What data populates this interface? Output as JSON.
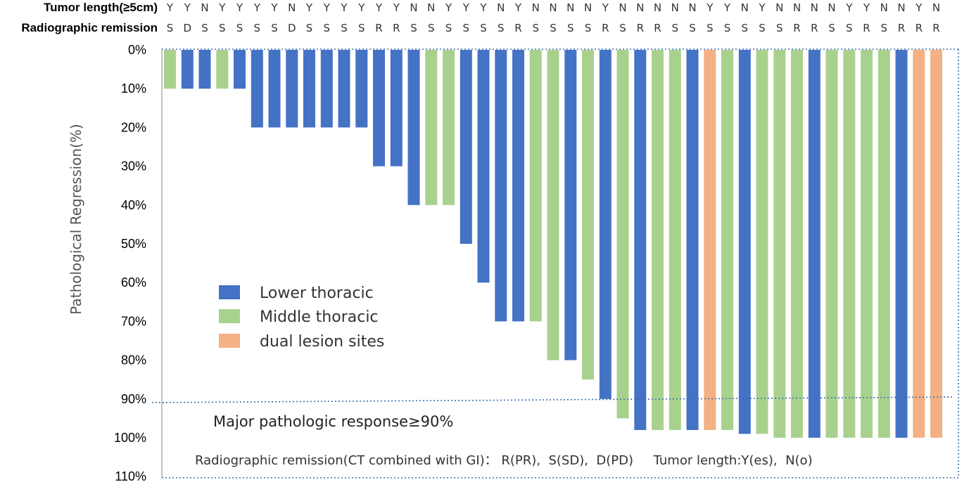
{
  "chart_data": {
    "type": "bar",
    "orientation": "downward",
    "ylabel": "Pathological Regression(%)",
    "ylim": [
      0,
      110
    ],
    "yticks": [
      0,
      10,
      20,
      30,
      40,
      50,
      60,
      70,
      80,
      90,
      100,
      110
    ],
    "ytick_labels": [
      "0%",
      "10%",
      "20%",
      "30%",
      "40%",
      "50%",
      "60%",
      "70%",
      "80%",
      "90%",
      "100%",
      "110%"
    ],
    "threshold": 90,
    "threshold_label": "Major pathologic response≥90%",
    "footnote": "Radiographic remission(CT combined with GI)： R(PR),  S(SD),  D(PD)     Tumor length:Y(es),  N(o)",
    "legend_position": "middle-left",
    "colors": {
      "Lower thoracic": "#4472c4",
      "Middle thoracic": "#a9d18e",
      "dual lesion sites": "#f4b183"
    },
    "legend": [
      "Lower thoracic",
      "Middle thoracic",
      "dual lesion sites"
    ],
    "values": [
      10,
      10,
      10,
      10,
      10,
      20,
      20,
      20,
      20,
      20,
      20,
      20,
      30,
      30,
      40,
      40,
      40,
      50,
      60,
      70,
      70,
      70,
      80,
      80,
      85,
      90,
      95,
      98,
      98,
      98,
      98,
      98,
      98,
      99,
      99,
      100,
      100,
      100,
      100,
      100,
      100,
      100,
      100,
      100,
      100
    ],
    "sites": [
      "Middle thoracic",
      "Lower thoracic",
      "Lower thoracic",
      "Middle thoracic",
      "Lower thoracic",
      "Lower thoracic",
      "Lower thoracic",
      "Lower thoracic",
      "Lower thoracic",
      "Lower thoracic",
      "Lower thoracic",
      "Lower thoracic",
      "Lower thoracic",
      "Lower thoracic",
      "Lower thoracic",
      "Middle thoracic",
      "Middle thoracic",
      "Lower thoracic",
      "Lower thoracic",
      "Lower thoracic",
      "Lower thoracic",
      "Middle thoracic",
      "Middle thoracic",
      "Lower thoracic",
      "Middle thoracic",
      "Lower thoracic",
      "Middle thoracic",
      "Lower thoracic",
      "Middle thoracic",
      "Middle thoracic",
      "Lower thoracic",
      "dual lesion sites",
      "Middle thoracic",
      "Lower thoracic",
      "Middle thoracic",
      "Middle thoracic",
      "Middle thoracic",
      "Lower thoracic",
      "Middle thoracic",
      "Middle thoracic",
      "Middle thoracic",
      "Middle thoracic",
      "Lower thoracic",
      "dual lesion sites",
      "dual lesion sites"
    ],
    "rows": [
      {
        "label": "Tumor length(≥5cm)",
        "values": [
          "Y",
          "Y",
          "N",
          "Y",
          "Y",
          "Y",
          "Y",
          "N",
          "Y",
          "Y",
          "Y",
          "Y",
          "Y",
          "Y",
          "N",
          "N",
          "Y",
          "Y",
          "Y",
          "N",
          "Y",
          "N",
          "N",
          "N",
          "N",
          "Y",
          "N",
          "N",
          "N",
          "N",
          "N",
          "Y",
          "Y",
          "N",
          "Y",
          "N",
          "N",
          "N",
          "N",
          "Y",
          "Y",
          "N",
          "N",
          "Y",
          "N"
        ]
      },
      {
        "label": "Radiographic remission",
        "values": [
          "S",
          "D",
          "S",
          "S",
          "S",
          "S",
          "S",
          "D",
          "S",
          "S",
          "S",
          "S",
          "R",
          "R",
          "S",
          "S",
          "S",
          "S",
          "S",
          "S",
          "R",
          "S",
          "S",
          "S",
          "S",
          "R",
          "S",
          "R",
          "R",
          "S",
          "S",
          "S",
          "S",
          "S",
          "S",
          "S",
          "R",
          "R",
          "S",
          "S",
          "R",
          "S",
          "R",
          "R",
          "R"
        ]
      }
    ]
  }
}
